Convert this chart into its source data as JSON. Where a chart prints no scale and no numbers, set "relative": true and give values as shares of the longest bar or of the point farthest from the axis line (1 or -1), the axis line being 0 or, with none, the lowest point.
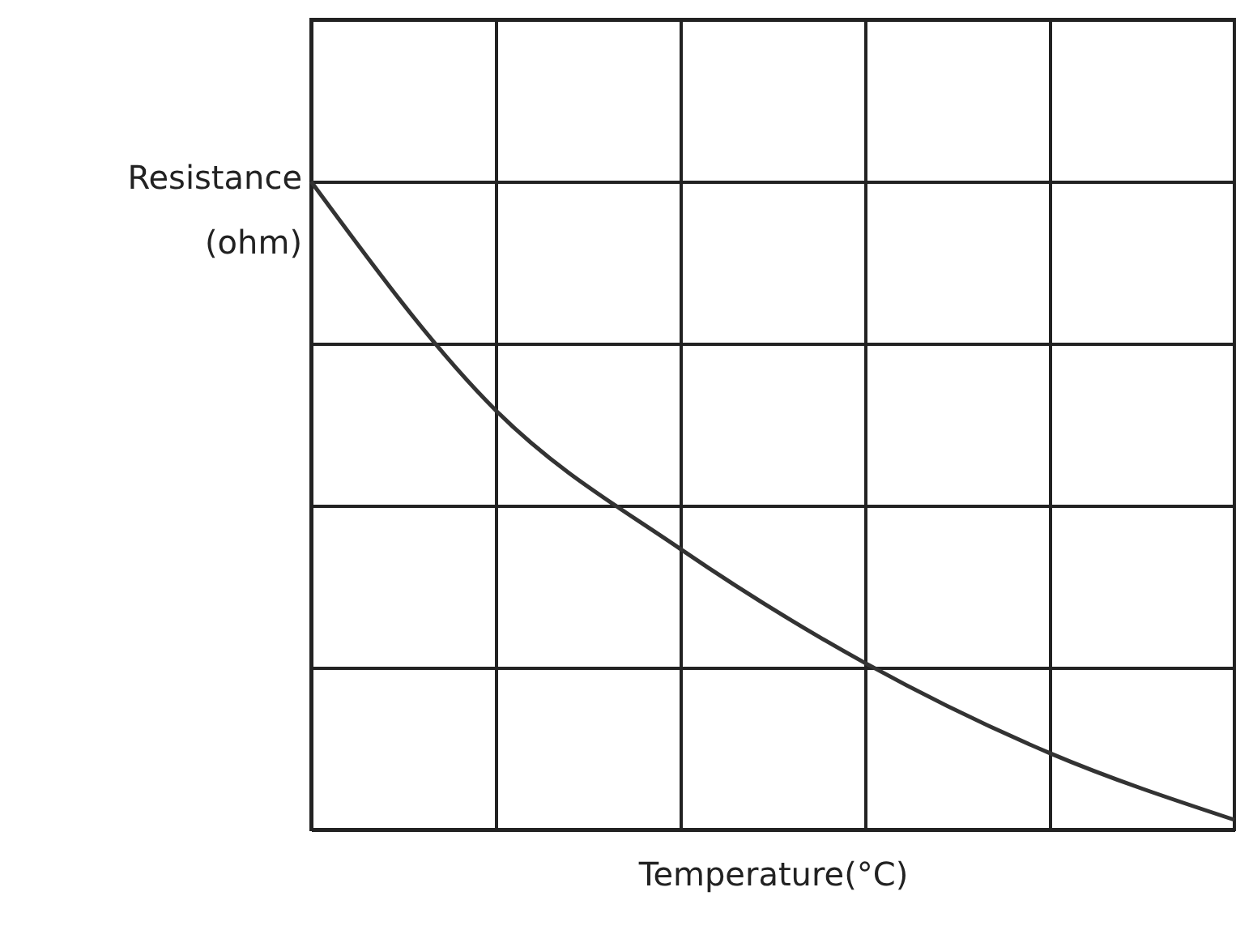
{
  "chart_data": {
    "type": "line",
    "relative": true,
    "xlabel": "Temperature(°C)",
    "ylabel": "Resistance (ohm)",
    "categories": [
      null,
      null,
      null,
      null,
      null,
      null
    ],
    "series": [
      {
        "color": "#333333",
        "values": [
          1,
          0.647,
          0.433,
          0.257,
          0.118,
          0.015
        ]
      }
    ],
    "grid": true
  }
}
